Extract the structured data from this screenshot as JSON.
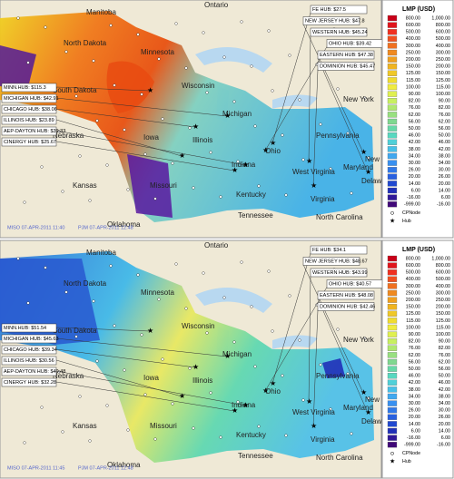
{
  "map_labels": [
    "Manitoba",
    "Ontario",
    "North Dakota",
    "Minnesota",
    "Wisconsin",
    "South Dakota",
    "Iowa",
    "Nebraska",
    "Kansas",
    "Missouri",
    "Illinois",
    "Indiana",
    "Ohio",
    "Michigan",
    "Kentucky",
    "Tennessee",
    "West Virginia",
    "Virginia",
    "North Carolina",
    "Pennsylvania",
    "New York",
    "Maryland",
    "New Jersey",
    "Delaware",
    "Oklahoma"
  ],
  "legend": {
    "title": "LMP (USD)",
    "rows": [
      [
        "800.00",
        "1,000.00"
      ],
      [
        "600.00",
        "800.00"
      ],
      [
        "500.00",
        "600.00"
      ],
      [
        "400.00",
        "500.00"
      ],
      [
        "300.00",
        "400.00"
      ],
      [
        "250.00",
        "300.00"
      ],
      [
        "200.00",
        "250.00"
      ],
      [
        "150.00",
        "200.00"
      ],
      [
        "125.00",
        "150.00"
      ],
      [
        "115.00",
        "125.00"
      ],
      [
        "100.00",
        "115.00"
      ],
      [
        "90.00",
        "100.00"
      ],
      [
        "82.00",
        "90.00"
      ],
      [
        "76.00",
        "82.00"
      ],
      [
        "62.00",
        "76.00"
      ],
      [
        "56.00",
        "62.00"
      ],
      [
        "50.00",
        "56.00"
      ],
      [
        "46.00",
        "50.00"
      ],
      [
        "42.00",
        "46.00"
      ],
      [
        "38.00",
        "42.00"
      ],
      [
        "34.00",
        "38.00"
      ],
      [
        "30.00",
        "34.00"
      ],
      [
        "26.00",
        "30.00"
      ],
      [
        "20.00",
        "26.00"
      ],
      [
        "14.00",
        "20.00"
      ],
      [
        "6.00",
        "14.00"
      ],
      [
        "-16.00",
        "6.00"
      ],
      [
        "-999.00",
        "-16.00"
      ]
    ],
    "cpnode": "CPNode",
    "hub": "Hub"
  },
  "panels": [
    {
      "timestamps": [
        "MISO 07-APR-2011 11:40",
        "PJM 07-APR-2011 12:48"
      ],
      "hubs_right": [
        "FE HUB: $27.5",
        "NEW JERSEY HUB: $47.8",
        "WESTERN HUB: $45.24",
        "OHIO HUB: $39.42",
        "EASTERN HUB: $47.38",
        "DOMINION HUB: $45.47"
      ],
      "hubs_left": [
        "MINN.HUB: $115.3",
        "MICHIGAN HUB: $42.91",
        "CHICAGO HUB: $38.06",
        "ILLINOIS HUB: $23.89",
        "AEP-DAYTON HUB: $39.33",
        "CINERGY HUB: $25.67"
      ]
    },
    {
      "timestamps": [
        "MISO 07-APR-2011 11:45",
        "PJM 07-APR-2011 12:48"
      ],
      "hubs_right": [
        "FE HUB: $34.1",
        "NEW JERSEY HUB: $48.67",
        "WESTERN HUB: $43.99",
        "OHIO HUB: $40.57",
        "EASTERN HUB: $48.08",
        "DOMINION HUB: $42.46"
      ],
      "hubs_left": [
        "MINN.HUB: $51.54",
        "MICHIGAN HUB: $45.63",
        "CHICAGO HUB: $39.34",
        "ILLINOIS HUB: $30.56",
        "AEP-DAYTON HUB: $40.48",
        "CINERGY HUB: $32.28"
      ]
    }
  ]
}
